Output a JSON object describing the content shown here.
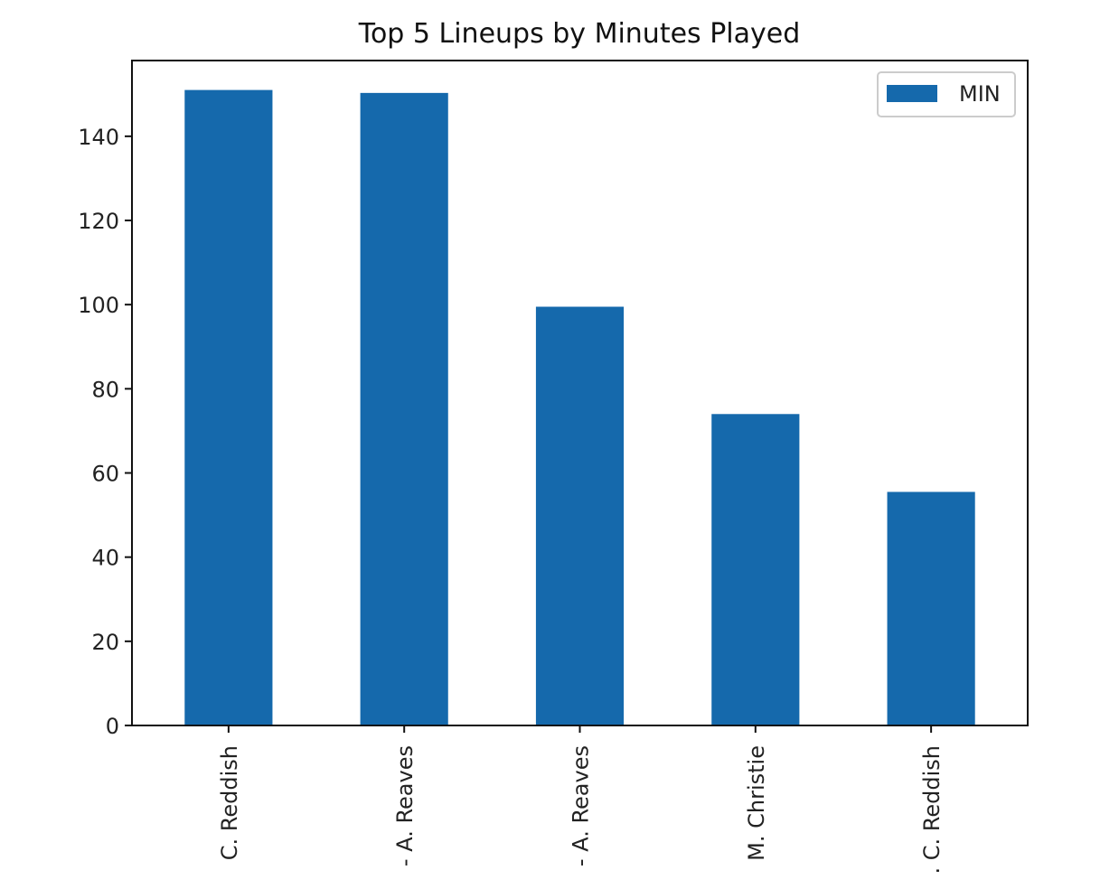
{
  "chart_data": {
    "type": "bar",
    "title": "Top 5 Lineups by Minutes Played",
    "xlabel": "",
    "ylabel": "",
    "categories": [
      "C. Reddish",
      "- A. Reaves",
      "- A. Reaves",
      "M. Christie",
      ". C. Reddish"
    ],
    "series": [
      {
        "name": "MIN",
        "values": [
          151,
          150.3,
          99.5,
          74,
          55.5
        ]
      }
    ],
    "ylim": [
      0,
      158
    ],
    "yticks": [
      0,
      20,
      40,
      60,
      80,
      100,
      120,
      140
    ],
    "grid": false,
    "legend_position": "top-right",
    "colors": {
      "bar": "#1569ac",
      "axis": "#111111",
      "legend_border": "#cccccc"
    }
  }
}
